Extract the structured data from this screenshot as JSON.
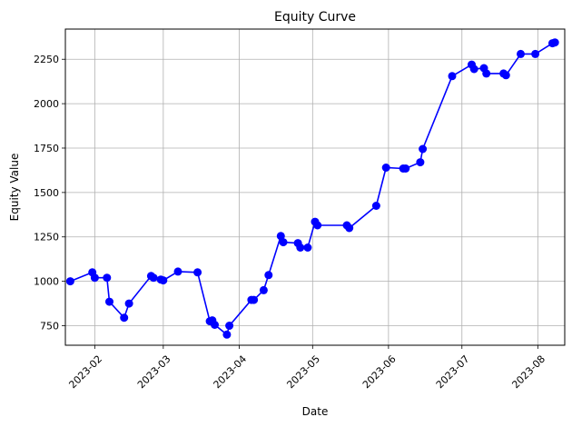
{
  "chart_data": {
    "type": "line",
    "title": "Equity Curve",
    "xlabel": "Date",
    "ylabel": "Equity Value",
    "grid": true,
    "legend": "none",
    "color": "#0000ff",
    "x_ticks": [
      "2023-02",
      "2023-03",
      "2023-04",
      "2023-05",
      "2023-06",
      "2023-07",
      "2023-08"
    ],
    "y_ticks": [
      750,
      1000,
      1250,
      1500,
      1750,
      2000,
      2250
    ],
    "ylim": [
      640,
      2420
    ],
    "xlim": [
      "2023-01-20",
      "2023-08-12"
    ],
    "series": [
      {
        "x": [
          "2023-01-22",
          "2023-01-31",
          "2023-02-01",
          "2023-02-06",
          "2023-02-07",
          "2023-02-13",
          "2023-02-15",
          "2023-02-24",
          "2023-02-25",
          "2023-02-28",
          "2023-03-01",
          "2023-03-07",
          "2023-03-15",
          "2023-03-20",
          "2023-03-21",
          "2023-03-22",
          "2023-03-27",
          "2023-03-28",
          "2023-04-06",
          "2023-04-07",
          "2023-04-11",
          "2023-04-13",
          "2023-04-18",
          "2023-04-19",
          "2023-04-25",
          "2023-04-26",
          "2023-04-29",
          "2023-05-02",
          "2023-05-03",
          "2023-05-15",
          "2023-05-16",
          "2023-05-27",
          "2023-05-31",
          "2023-06-07",
          "2023-06-08",
          "2023-06-14",
          "2023-06-15",
          "2023-06-27",
          "2023-07-05",
          "2023-07-06",
          "2023-07-10",
          "2023-07-11",
          "2023-07-18",
          "2023-07-19",
          "2023-07-25",
          "2023-07-31",
          "2023-08-07",
          "2023-08-08"
        ],
        "y": [
          1000,
          1050,
          1020,
          1020,
          885,
          795,
          875,
          1030,
          1020,
          1010,
          1005,
          1055,
          1050,
          775,
          780,
          755,
          700,
          750,
          895,
          895,
          950,
          1035,
          1255,
          1220,
          1215,
          1190,
          1190,
          1335,
          1315,
          1315,
          1300,
          1425,
          1640,
          1635,
          1635,
          1670,
          1745,
          2155,
          2220,
          2195,
          2200,
          2170,
          2170,
          2160,
          2280,
          2280,
          2340,
          2345
        ]
      }
    ]
  }
}
